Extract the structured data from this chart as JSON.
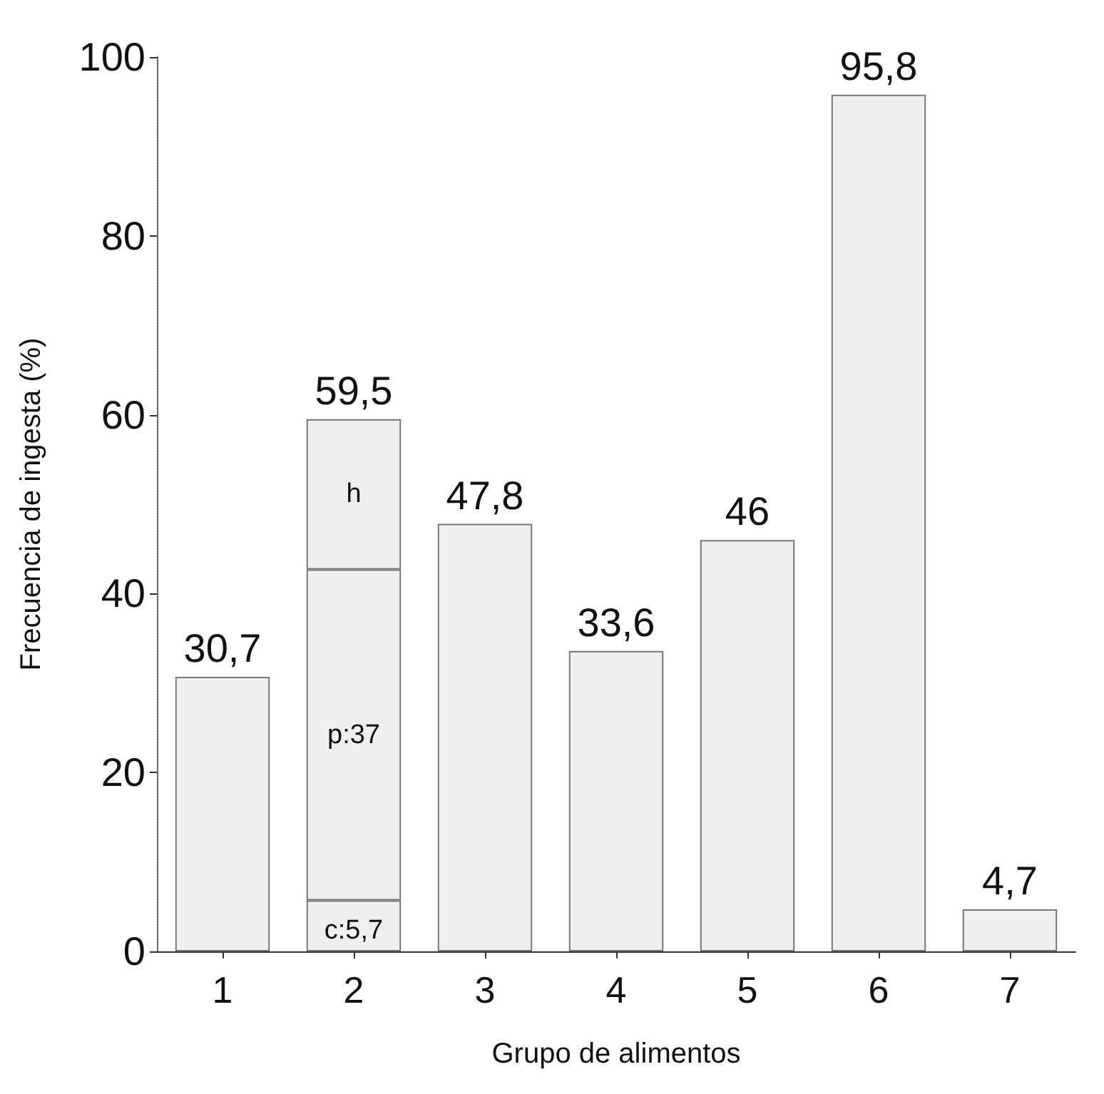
{
  "chart_data": {
    "type": "bar",
    "xlabel": "Grupo de alimentos",
    "ylabel": "Frecuencia de ingesta (%)",
    "categories": [
      "1",
      "2",
      "3",
      "4",
      "5",
      "6",
      "7"
    ],
    "stacked": true,
    "series": [
      {
        "color": "#efefef",
        "values": [
          30.7,
          5.7,
          47.8,
          33.6,
          46,
          95.8,
          4.7
        ],
        "value_labels": [
          null,
          "c:5,7",
          null,
          null,
          null,
          null,
          null
        ]
      },
      {
        "color": "#efefef",
        "values": [
          null,
          37,
          null,
          null,
          null,
          null,
          null
        ],
        "value_labels": [
          null,
          "p:37",
          null,
          null,
          null,
          null,
          null
        ]
      },
      {
        "color": "#efefef",
        "values": [
          null,
          16.8,
          null,
          null,
          null,
          null,
          null
        ],
        "value_labels": [
          null,
          "h",
          null,
          null,
          null,
          null,
          null
        ]
      }
    ],
    "totals": [
      "30,7",
      "59,5",
      "47,8",
      "33,6",
      "46",
      "95,8",
      "4,7"
    ],
    "ylim": [
      0,
      100
    ],
    "yticks": [
      0,
      20,
      40,
      60,
      80,
      100
    ],
    "grid": false
  }
}
